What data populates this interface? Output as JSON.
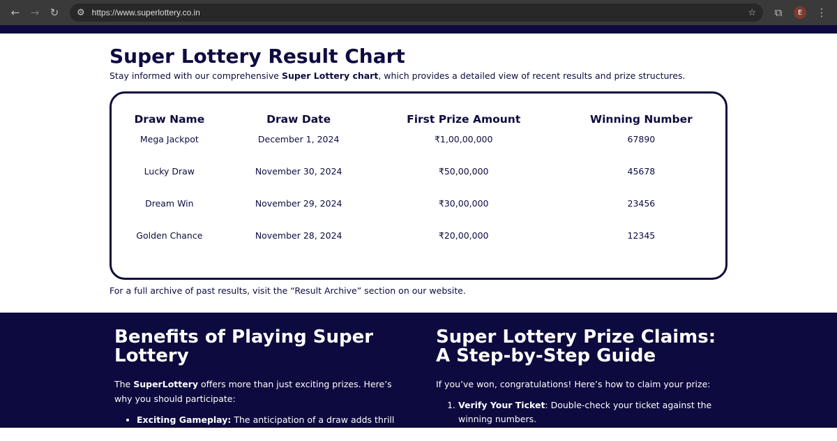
{
  "browser": {
    "url": "https://www.superlottery.co.in",
    "profile_initial": "E"
  },
  "page": {
    "title": "Super Lottery Result Chart",
    "subtitle_pre": "Stay informed with our comprehensive ",
    "subtitle_bold": "Super Lottery chart",
    "subtitle_post": ", which provides a detailed view of recent results and prize structures.",
    "table": {
      "headers": [
        "Draw Name",
        "Draw Date",
        "First Prize Amount",
        "Winning Number"
      ],
      "rows": [
        [
          "Mega Jackpot",
          "December 1, 2024",
          "₹1,00,00,000",
          "67890"
        ],
        [
          "Lucky Draw",
          "November 30, 2024",
          "₹50,00,000",
          "45678"
        ],
        [
          "Dream Win",
          "November 29, 2024",
          "₹30,00,000",
          "23456"
        ],
        [
          "Golden Chance",
          "November 28, 2024",
          "₹20,00,000",
          "12345"
        ]
      ]
    },
    "archive_note": "For a full archive of past results, visit the “Result Archive” section on our website."
  },
  "benefits": {
    "title": "Benefits of Playing Super Lottery",
    "intro_pre": "The ",
    "intro_bold": "SuperLottery",
    "intro_post": " offers more than just exciting prizes. Here’s why you should participate:",
    "item_bold": "Exciting Gameplay:",
    "item_text": " The anticipation of a draw adds thrill to"
  },
  "claims": {
    "title": "Super Lottery Prize Claims: A Step-by-Step Guide",
    "intro": "If you’ve won, congratulations! Here’s how to claim your prize:",
    "item_bold": "Verify Your Ticket",
    "item_text": ": Double-check your ticket against the winning numbers."
  }
}
